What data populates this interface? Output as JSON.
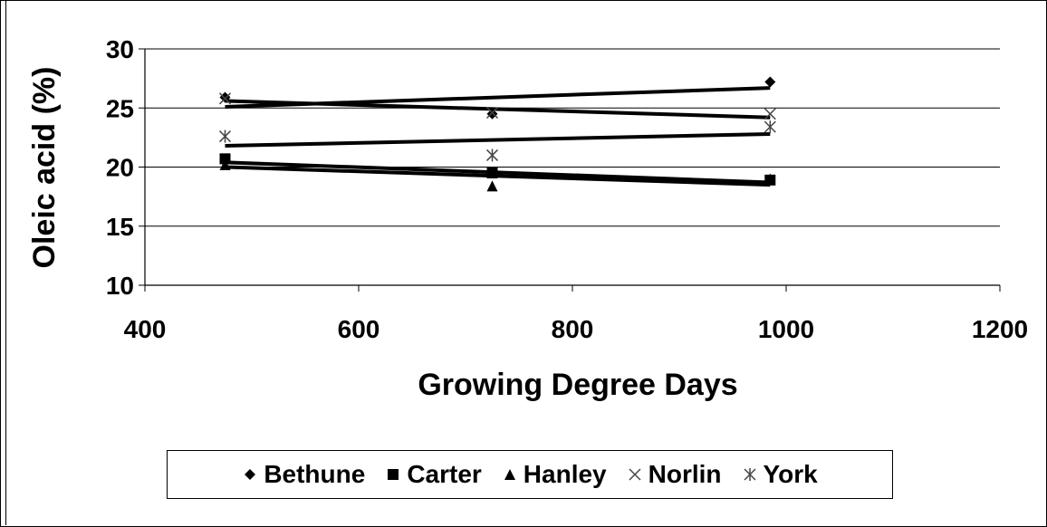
{
  "chart_data": {
    "type": "scatter",
    "title": "",
    "xlabel": "Growing Degree Days",
    "ylabel": "Oleic acid (%)",
    "xlim": [
      400,
      1200
    ],
    "ylim": [
      10,
      30
    ],
    "x_ticks": [
      "400",
      "600",
      "800",
      "1000",
      "1200"
    ],
    "y_ticks": [
      "10",
      "15",
      "20",
      "25",
      "30"
    ],
    "grid": "horizontal",
    "legend_position": "bottom",
    "series": [
      {
        "name": "Bethune",
        "marker": "diamond",
        "x": [
          475,
          725,
          985
        ],
        "y": [
          25.9,
          24.5,
          27.2
        ],
        "trend": {
          "x": [
            475,
            985
          ],
          "y": [
            25.1,
            26.7
          ]
        }
      },
      {
        "name": "Carter",
        "marker": "square",
        "x": [
          475,
          725,
          985
        ],
        "y": [
          20.7,
          19.5,
          18.9
        ],
        "trend": {
          "x": [
            475,
            985
          ],
          "y": [
            20.4,
            18.7
          ]
        }
      },
      {
        "name": "Hanley",
        "marker": "triangle",
        "x": [
          475,
          725,
          985
        ],
        "y": [
          20.2,
          18.4,
          19.0
        ],
        "trend": {
          "x": [
            475,
            985
          ],
          "y": [
            20.0,
            18.5
          ]
        }
      },
      {
        "name": "Norlin",
        "marker": "x",
        "x": [
          475,
          725,
          985
        ],
        "y": [
          25.8,
          24.6,
          24.5
        ],
        "trend": {
          "x": [
            475,
            985
          ],
          "y": [
            25.6,
            24.2
          ]
        }
      },
      {
        "name": "York",
        "marker": "asterisk",
        "x": [
          475,
          725,
          985
        ],
        "y": [
          22.6,
          21.0,
          23.4
        ],
        "trend": {
          "x": [
            475,
            985
          ],
          "y": [
            21.8,
            22.8
          ]
        }
      }
    ]
  }
}
